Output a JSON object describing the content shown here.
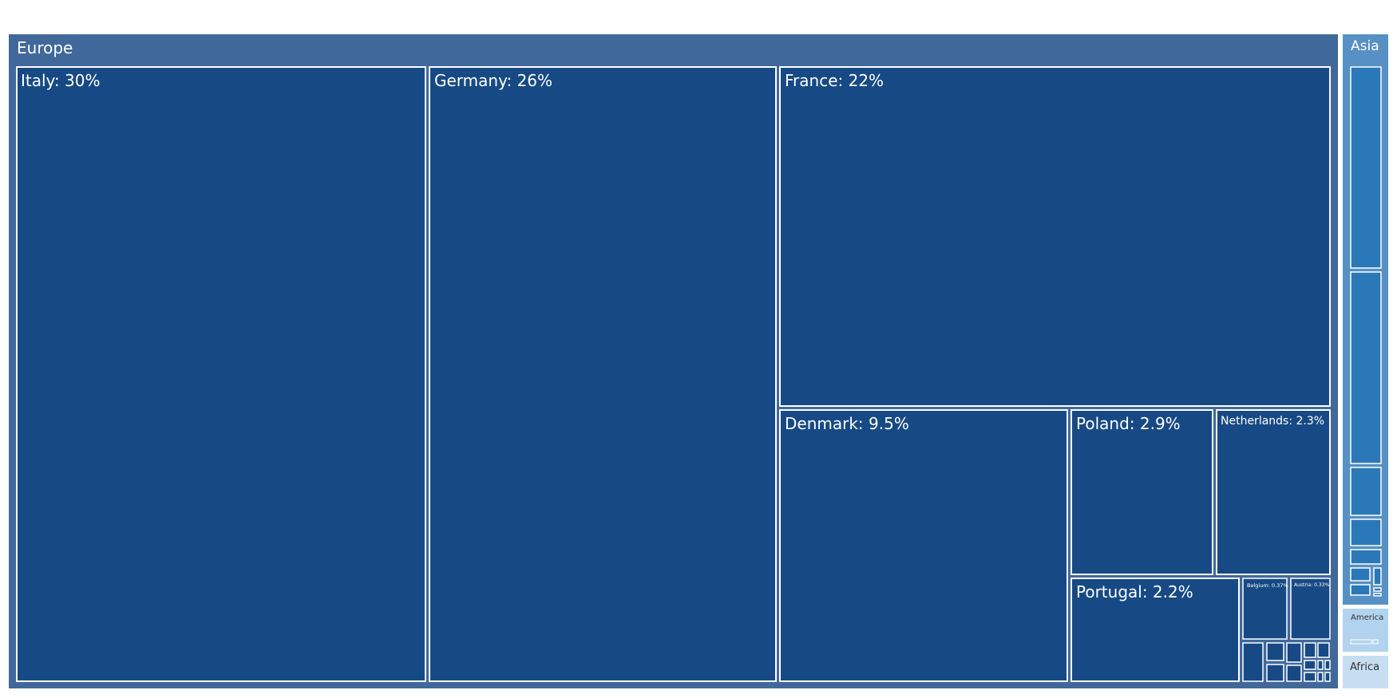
{
  "chart_data": {
    "type": "treemap",
    "title": "",
    "colors": {
      "europe_bg": "#41689a",
      "europe_leaf": "#174a84",
      "asia_bg": "#5790c4",
      "asia_leaf": "#2b78b8",
      "america_bg": "#b1d3ef",
      "africa_bg": "#c7ddf1",
      "leaf_border": "#ffffff",
      "light_text": "#ffffff",
      "dark_text": "#333333"
    },
    "groups": [
      {
        "name": "Europe",
        "label": "Europe",
        "children": [
          {
            "name": "Italy",
            "label": "Italy: 30%",
            "share": 30
          },
          {
            "name": "Germany",
            "label": "Germany: 26%",
            "share": 26
          },
          {
            "name": "France",
            "label": "France: 22%",
            "share": 22
          },
          {
            "name": "Denmark",
            "label": "Denmark: 9.5%",
            "share": 9.5
          },
          {
            "name": "Poland",
            "label": "Poland: 2.9%",
            "share": 2.9
          },
          {
            "name": "Netherlands",
            "label": "Netherlands: 2.3%",
            "share": 2.3
          },
          {
            "name": "Portugal",
            "label": "Portugal: 2.2%",
            "share": 2.2
          },
          {
            "name": "Belgium",
            "label": "Belgium: 0.37%",
            "share": 0.37
          },
          {
            "name": "Austria",
            "label": "Austria: 0.33%",
            "share": 0.33
          }
        ]
      },
      {
        "name": "Asia",
        "label": "Asia",
        "children": []
      },
      {
        "name": "America",
        "label": "America",
        "children": []
      },
      {
        "name": "Africa",
        "label": "Africa",
        "children": []
      }
    ]
  }
}
